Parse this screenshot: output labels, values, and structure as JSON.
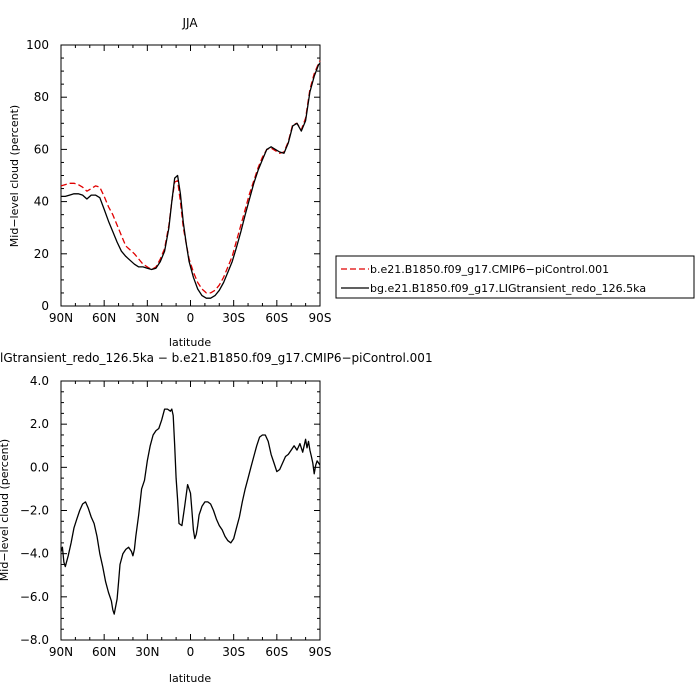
{
  "chart_data": [
    {
      "type": "line",
      "title": "JJA",
      "xlabel": "latitude",
      "ylabel": "Mid−level cloud (percent)",
      "xlim": [
        90,
        -90
      ],
      "ylim": [
        0,
        100
      ],
      "x_ticks": [
        {
          "value": 90,
          "label": "90N"
        },
        {
          "value": 60,
          "label": "60N"
        },
        {
          "value": 30,
          "label": "30N"
        },
        {
          "value": 0,
          "label": "0"
        },
        {
          "value": -30,
          "label": "30S"
        },
        {
          "value": -60,
          "label": "60S"
        },
        {
          "value": -90,
          "label": "90S"
        }
      ],
      "y_ticks": [
        {
          "value": 0,
          "label": "0"
        },
        {
          "value": 20,
          "label": "20"
        },
        {
          "value": 40,
          "label": "40"
        },
        {
          "value": 60,
          "label": "60"
        },
        {
          "value": 80,
          "label": "80"
        },
        {
          "value": 100,
          "label": "100"
        }
      ],
      "legend_position": "right",
      "series": [
        {
          "name": "b.e21.B1850.f09_g17.CMIP6−piControl.001",
          "color": "#e00000",
          "dash": "dashed",
          "x": [
            90,
            87,
            84,
            81,
            78,
            75,
            72,
            69,
            66,
            63,
            60,
            57,
            54,
            51,
            48,
            45,
            42,
            39,
            36,
            33,
            30,
            27,
            24,
            21,
            18,
            15,
            13,
            11,
            9,
            7,
            5,
            3,
            1,
            -2,
            -5,
            -8,
            -11,
            -14,
            -17,
            -20,
            -23,
            -26,
            -29,
            -32,
            -35,
            -38,
            -41,
            -44,
            -47,
            -50,
            -53,
            -56,
            -59,
            -62,
            -65,
            -68,
            -71,
            -74,
            -77,
            -80,
            -83,
            -86,
            -89,
            -90
          ],
          "y": [
            46,
            46.5,
            47,
            47,
            46.5,
            45.5,
            44,
            45,
            46,
            45.5,
            42,
            38,
            35,
            31,
            27,
            23,
            21.5,
            20,
            18,
            16,
            15,
            14,
            15,
            18,
            22,
            31,
            40,
            47.5,
            48,
            40,
            30,
            24,
            18,
            13,
            9,
            6.5,
            5,
            5,
            6,
            8,
            11,
            15,
            19,
            25,
            31,
            37,
            43,
            48,
            53,
            57,
            60,
            60.5,
            59.5,
            58.5,
            59,
            63,
            69.5,
            70,
            67.5,
            72,
            83,
            89,
            93,
            94
          ]
        },
        {
          "name": "bg.e21.B1850.f09_g17.LIGtransient_redo_126.5ka",
          "color": "#000000",
          "dash": "solid",
          "x": [
            90,
            87,
            84,
            81,
            78,
            75,
            72,
            69,
            66,
            63,
            60,
            57,
            54,
            51,
            48,
            45,
            42,
            39,
            36,
            33,
            30,
            27,
            24,
            21,
            18,
            15,
            13,
            11,
            9,
            7,
            5,
            3,
            1,
            -2,
            -5,
            -8,
            -11,
            -14,
            -17,
            -20,
            -23,
            -26,
            -29,
            -32,
            -35,
            -38,
            -41,
            -44,
            -47,
            -50,
            -53,
            -56,
            -59,
            -62,
            -65,
            -68,
            -71,
            -74,
            -77,
            -80,
            -83,
            -86,
            -89,
            -90
          ],
          "y": [
            42,
            42,
            42.5,
            43,
            43,
            42.5,
            41,
            42.5,
            42.5,
            41.5,
            37,
            32.5,
            28.5,
            24.5,
            21,
            19,
            17.5,
            16,
            15,
            15,
            14.5,
            14,
            14.5,
            17,
            21,
            30,
            40,
            49,
            50,
            43,
            32,
            24,
            17,
            11,
            6.5,
            4,
            3,
            3,
            4,
            6,
            9,
            13,
            17,
            22.5,
            28.5,
            35,
            41,
            47,
            52,
            56,
            60,
            61,
            60,
            59,
            58.5,
            62.5,
            69,
            70,
            67,
            71,
            82,
            88,
            92.5,
            93
          ]
        }
      ]
    },
    {
      "type": "line",
      "title": "lGtransient_redo_126.5ka − b.e21.B1850.f09_g17.CMIP6−piControl.001",
      "xlabel": "latitude",
      "ylabel": "Mid−level cloud (percent)",
      "xlim": [
        90,
        -90
      ],
      "ylim": [
        -8,
        4
      ],
      "x_ticks": [
        {
          "value": 90,
          "label": "90N"
        },
        {
          "value": 60,
          "label": "60N"
        },
        {
          "value": 30,
          "label": "30N"
        },
        {
          "value": 0,
          "label": "0"
        },
        {
          "value": -30,
          "label": "30S"
        },
        {
          "value": -60,
          "label": "60S"
        },
        {
          "value": -90,
          "label": "90S"
        }
      ],
      "y_ticks": [
        {
          "value": -8,
          "label": "−8.0"
        },
        {
          "value": -6,
          "label": "−6.0"
        },
        {
          "value": -4,
          "label": "−4.0"
        },
        {
          "value": -2,
          "label": "−2.0"
        },
        {
          "value": 0,
          "label": "0.0"
        },
        {
          "value": 2,
          "label": "2.0"
        },
        {
          "value": 4,
          "label": "4.0"
        }
      ],
      "series": [
        {
          "color": "#000000",
          "dash": "solid",
          "x": [
            90,
            89,
            88,
            87,
            85,
            83,
            81,
            79,
            77,
            75,
            73,
            71,
            69,
            67,
            65,
            63,
            61,
            59,
            57,
            55,
            54,
            53,
            51,
            50,
            49,
            47,
            45,
            43,
            41,
            40,
            39,
            38,
            36,
            34,
            32,
            30,
            28,
            26,
            24,
            22,
            20,
            18,
            16,
            14,
            13,
            12,
            11,
            10,
            9,
            8,
            6,
            4,
            2,
            0,
            -1,
            -2,
            -3,
            -4,
            -5,
            -6,
            -7,
            -8,
            -10,
            -12,
            -14,
            -16,
            -18,
            -20,
            -22,
            -24,
            -26,
            -28,
            -30,
            -32,
            -34,
            -36,
            -38,
            -40,
            -42,
            -44,
            -46,
            -48,
            -50,
            -52,
            -54,
            -56,
            -58,
            -60,
            -62,
            -64,
            -66,
            -68,
            -70,
            -72,
            -74,
            -76,
            -78,
            -80,
            -81,
            -82,
            -83,
            -84,
            -85,
            -86,
            -87,
            -88,
            -89,
            -90
          ],
          "y": [
            -3.9,
            -3.7,
            -4.4,
            -4.6,
            -4.1,
            -3.5,
            -2.8,
            -2.4,
            -2.0,
            -1.7,
            -1.6,
            -1.9,
            -2.3,
            -2.6,
            -3.2,
            -4.0,
            -4.6,
            -5.3,
            -5.8,
            -6.2,
            -6.6,
            -6.8,
            -6.1,
            -5.3,
            -4.5,
            -4.0,
            -3.8,
            -3.7,
            -3.9,
            -4.1,
            -3.8,
            -3.2,
            -2.2,
            -1.0,
            -0.6,
            0.3,
            1.0,
            1.5,
            1.7,
            1.8,
            2.2,
            2.7,
            2.7,
            2.6,
            2.7,
            2.4,
            1.0,
            -0.5,
            -1.5,
            -2.6,
            -2.7,
            -1.8,
            -0.8,
            -1.2,
            -2.0,
            -2.9,
            -3.3,
            -3.1,
            -2.7,
            -2.2,
            -2.0,
            -1.8,
            -1.6,
            -1.6,
            -1.7,
            -2.0,
            -2.4,
            -2.7,
            -2.9,
            -3.2,
            -3.4,
            -3.5,
            -3.3,
            -2.8,
            -2.3,
            -1.6,
            -1.0,
            -0.5,
            0.0,
            0.5,
            1.0,
            1.4,
            1.5,
            1.5,
            1.2,
            0.6,
            0.2,
            -0.2,
            -0.1,
            0.2,
            0.5,
            0.6,
            0.8,
            1.0,
            0.8,
            1.1,
            0.7,
            1.3,
            0.9,
            1.2,
            0.8,
            0.5,
            0.2,
            -0.3,
            0.1,
            0.3,
            0.2,
            0.1
          ]
        }
      ]
    }
  ]
}
